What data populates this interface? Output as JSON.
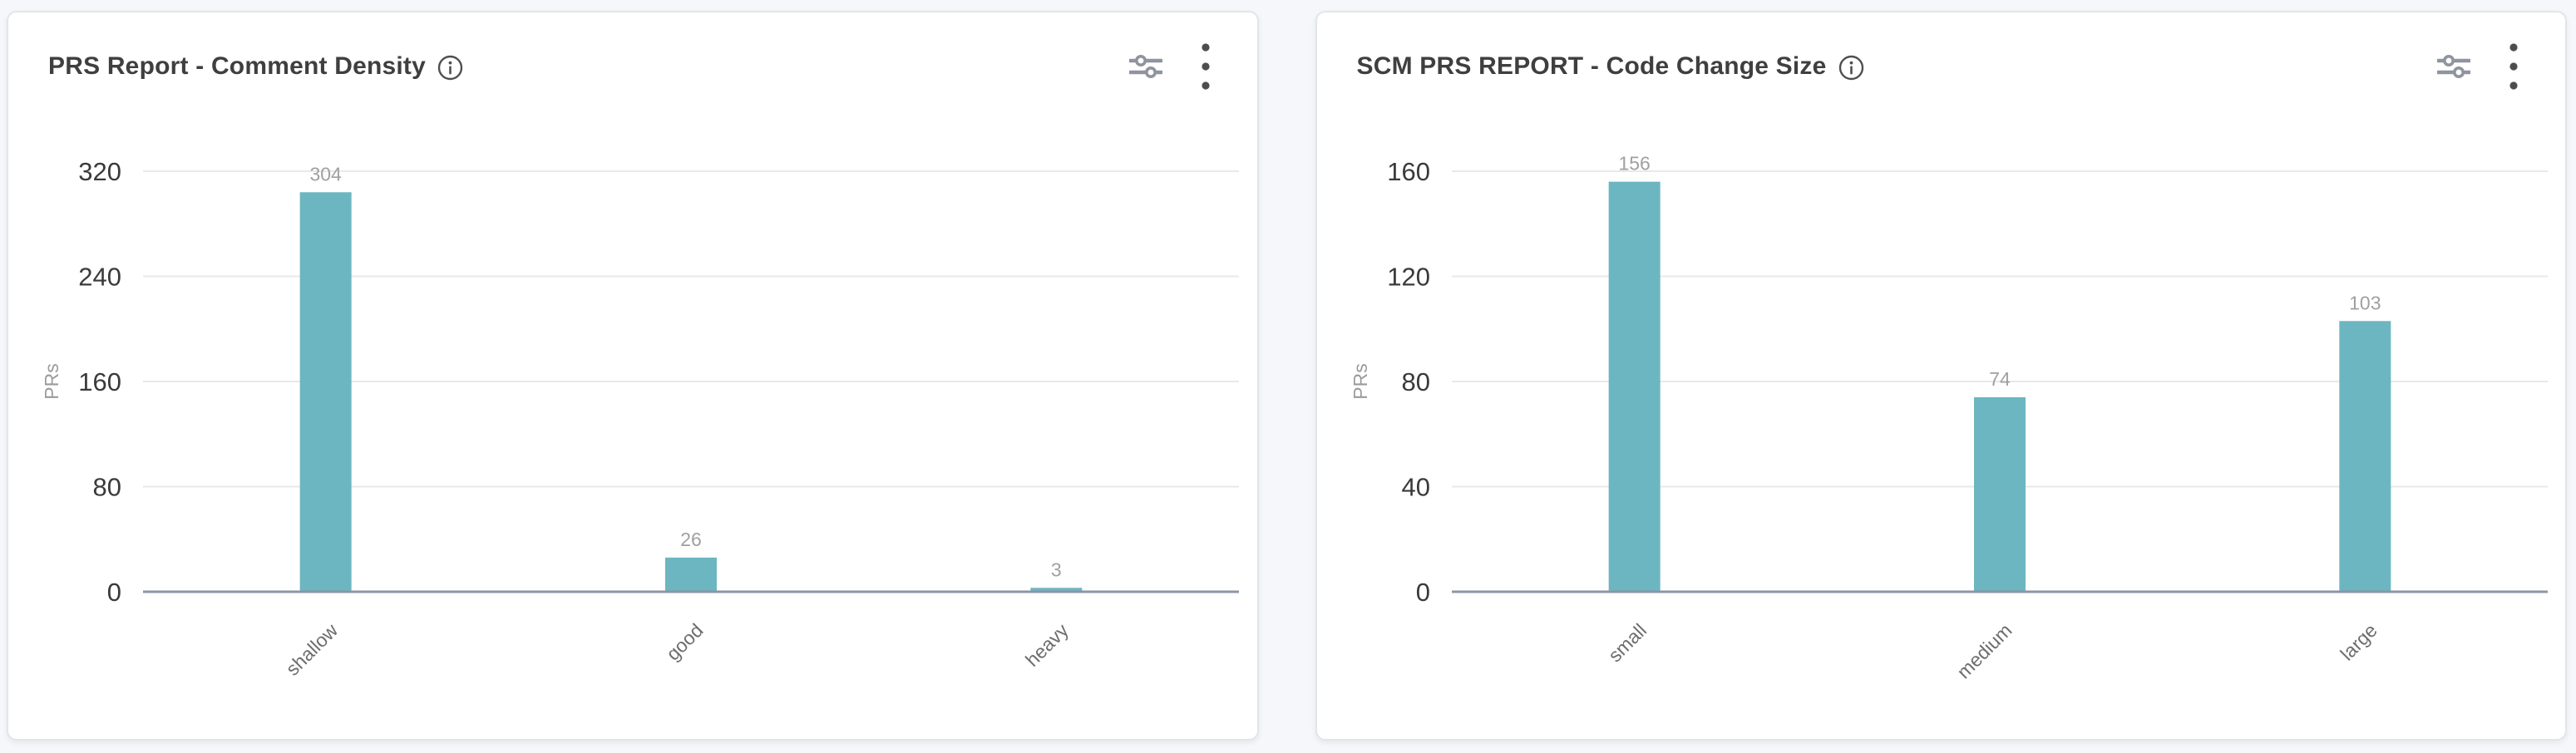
{
  "colors": {
    "page_bg": "#f6f7fa",
    "card_bg": "#ffffff",
    "card_border": "#e2e5ea",
    "title_text": "#3f3f3f",
    "bar": "#6cb6c1",
    "gridline": "#e9e9e9",
    "axis_line": "#8b96a5",
    "tick_label": "#3a3a3a",
    "value_label": "#a0a0a0",
    "category_label": "#6d6d6d",
    "ylabel_text": "#9a9a9a",
    "icon_gray": "#8f959e",
    "icon_dark": "#4d4d4d"
  },
  "cards": [
    {
      "title": "PRS Report - Comment Density",
      "info_icon": "info-circle",
      "actions": [
        {
          "icon": "filter-sliders"
        },
        {
          "icon": "kebab-menu"
        }
      ]
    },
    {
      "title": "SCM PRS REPORT - Code Change Size",
      "info_icon": "info-circle",
      "actions": [
        {
          "icon": "filter-sliders"
        },
        {
          "icon": "kebab-menu"
        }
      ]
    }
  ],
  "chart_data": [
    {
      "type": "bar",
      "title": "PRS Report - Comment Density",
      "categories": [
        "shallow",
        "good",
        "heavy"
      ],
      "values": [
        304,
        26,
        3
      ],
      "xlabel": "",
      "ylabel": "PRs",
      "ylim": [
        0,
        320
      ],
      "yticks": [
        0,
        80,
        160,
        240,
        320
      ],
      "grid": true,
      "legend": "none",
      "value_labels_shown": true,
      "category_label_rotation_deg": 45
    },
    {
      "type": "bar",
      "title": "SCM PRS REPORT - Code Change Size",
      "categories": [
        "small",
        "medium",
        "large"
      ],
      "values": [
        156,
        74,
        103
      ],
      "xlabel": "",
      "ylabel": "PRs",
      "ylim": [
        0,
        160
      ],
      "yticks": [
        0,
        40,
        80,
        120,
        160
      ],
      "grid": true,
      "legend": "none",
      "value_labels_shown": true,
      "category_label_rotation_deg": 45
    }
  ]
}
